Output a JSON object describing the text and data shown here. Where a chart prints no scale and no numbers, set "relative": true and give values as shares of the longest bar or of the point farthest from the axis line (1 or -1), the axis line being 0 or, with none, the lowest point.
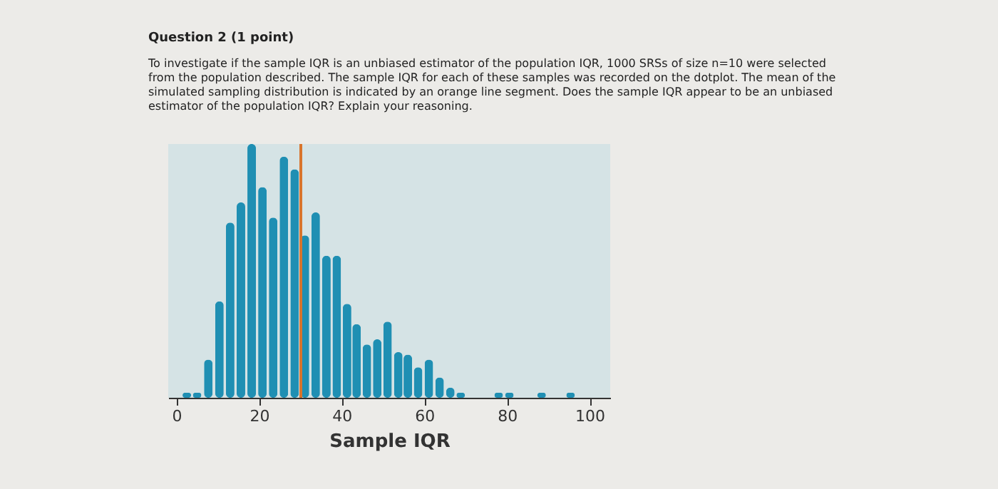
{
  "chart_data": {
    "type": "bar",
    "title": "Question 2 (1 point)",
    "subtitle": "To investigate if the sample IQR is an unbiased estimator of the population IQR, 1000 SRSs of size n=10 were selected from the population described. The sample IQR for each of these samples was recorded on the dotplot. The mean of the simulated sampling distribution is indicated by an orange line segment. Does the sample IQR appear to be an unbiased estimator of the population IQR? Explain your reasoning.",
    "xlabel": "Sample IQR",
    "relative": true,
    "x": [
      2.5,
      5,
      7.7,
      10.4,
      13,
      15.6,
      18.2,
      20.8,
      23.4,
      26,
      28.6,
      31.1,
      33.7,
      36.3,
      38.8,
      41.3,
      43.6,
      46.1,
      48.6,
      51.1,
      53.7,
      56,
      58.5,
      61.1,
      63.7,
      66.3,
      68.8,
      78,
      80.6,
      88.4,
      95.4
    ],
    "values": [
      0.02,
      0.02,
      0.15,
      0.38,
      0.69,
      0.77,
      1,
      0.83,
      0.71,
      0.95,
      0.9,
      0.64,
      0.73,
      0.56,
      0.56,
      0.37,
      0.29,
      0.21,
      0.23,
      0.3,
      0.18,
      0.17,
      0.12,
      0.15,
      0.08,
      0.04,
      0.02,
      0.02,
      0.02,
      0.02,
      0.02
    ],
    "color": "#1f8fb3",
    "xlim": [
      -2,
      105
    ],
    "xticks": [
      0,
      20,
      40,
      60,
      80,
      100
    ],
    "ref_lines": [
      {
        "axis": "x",
        "value": 30.1,
        "color": "#d9742c"
      }
    ]
  }
}
